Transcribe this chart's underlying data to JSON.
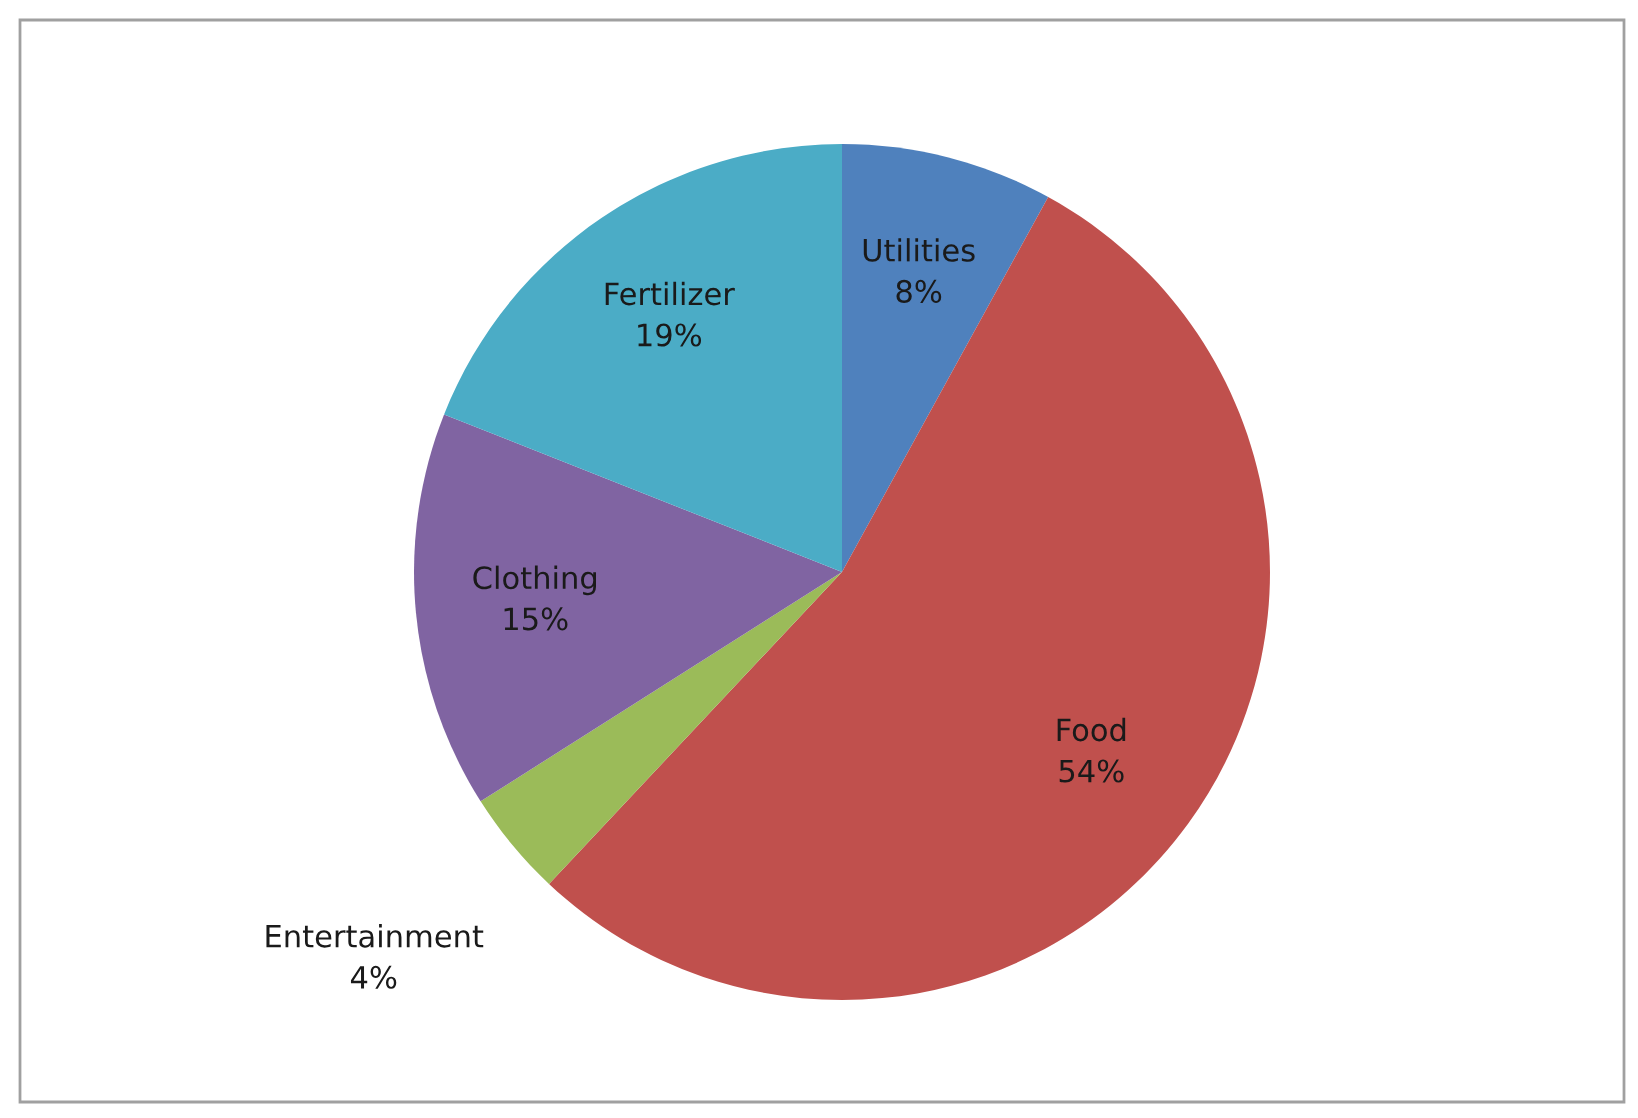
{
  "chart_data": {
    "type": "pie",
    "categories": [
      "Utilities",
      "Food",
      "Entertainment",
      "Clothing",
      "Fertilizer"
    ],
    "values": [
      8,
      54,
      4,
      15,
      19
    ],
    "colors": [
      "#4f81bd",
      "#c0504d",
      "#9bbb59",
      "#8064a2",
      "#4bacc6"
    ],
    "value_labels": [
      "8%",
      "54%",
      "4%",
      "15%",
      "19%"
    ],
    "legend": false
  }
}
